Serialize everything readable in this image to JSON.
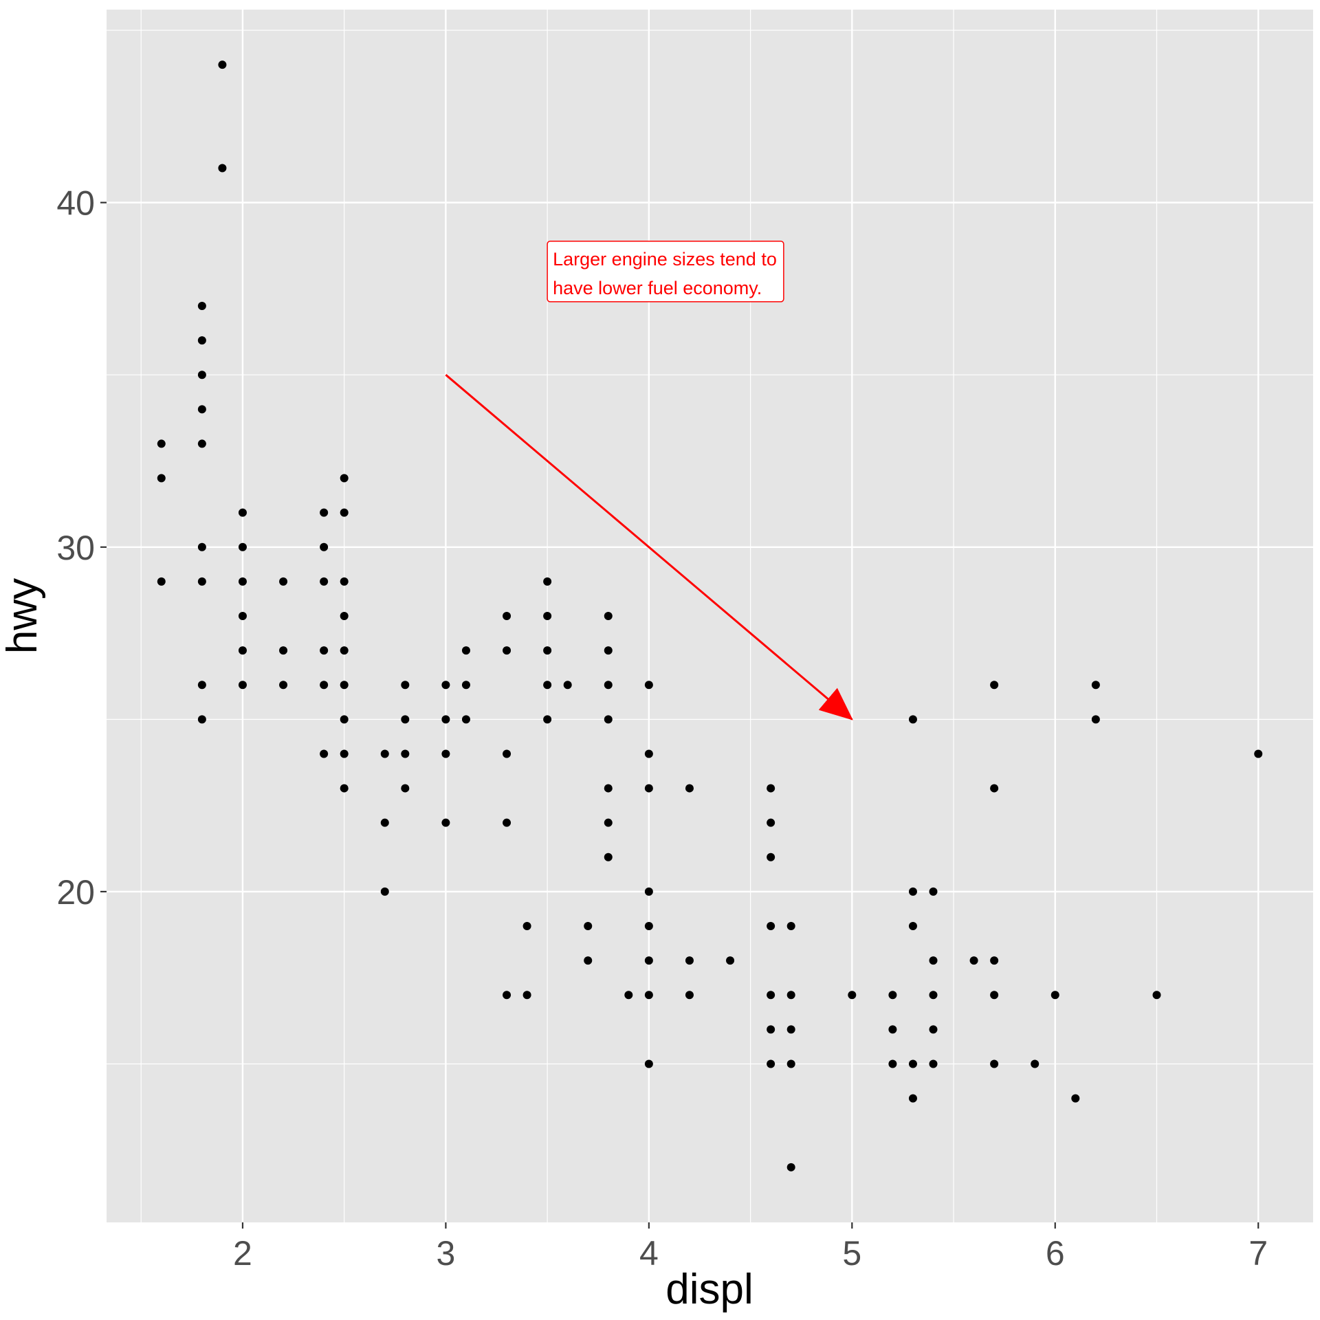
{
  "chart_data": {
    "type": "scatter",
    "xlabel": "displ",
    "ylabel": "hwy",
    "xlim": [
      1.33,
      7.27
    ],
    "ylim": [
      10.4,
      45.6
    ],
    "x_ticks": [
      2,
      3,
      4,
      5,
      6,
      7
    ],
    "y_ticks": [
      20,
      30,
      40
    ],
    "x_minor_ticks": [
      1.5,
      2.5,
      3.5,
      4.5,
      5.5,
      6.5
    ],
    "y_minor_ticks": [
      15,
      25,
      35,
      45
    ],
    "grid": true,
    "colors": {
      "panel": "#e5e5e5",
      "grid": "#ffffff",
      "point": "#000000",
      "annotation": "#ff0000",
      "tick_text": "#4d4d4d"
    },
    "annotation": {
      "lines": [
        "Larger engine sizes tend to",
        "have lower fuel economy."
      ],
      "x": 3.5,
      "y": 38,
      "color": "#ff0000"
    },
    "arrow": {
      "x_start": 3,
      "y_start": 35,
      "x_end": 5,
      "y_end": 25,
      "color": "#ff0000"
    },
    "points": [
      [
        1.6,
        33
      ],
      [
        1.6,
        32
      ],
      [
        1.6,
        29
      ],
      [
        1.8,
        37
      ],
      [
        1.8,
        36
      ],
      [
        1.8,
        35
      ],
      [
        1.8,
        34
      ],
      [
        1.8,
        33
      ],
      [
        1.8,
        30
      ],
      [
        1.8,
        29
      ],
      [
        1.8,
        26
      ],
      [
        1.8,
        25
      ],
      [
        1.9,
        44
      ],
      [
        1.9,
        41
      ],
      [
        2.0,
        31
      ],
      [
        2.0,
        30
      ],
      [
        2.0,
        29
      ],
      [
        2.0,
        28
      ],
      [
        2.0,
        27
      ],
      [
        2.0,
        26
      ],
      [
        2.2,
        29
      ],
      [
        2.2,
        27
      ],
      [
        2.2,
        26
      ],
      [
        2.4,
        31
      ],
      [
        2.4,
        30
      ],
      [
        2.4,
        29
      ],
      [
        2.4,
        27
      ],
      [
        2.4,
        26
      ],
      [
        2.4,
        24
      ],
      [
        2.5,
        32
      ],
      [
        2.5,
        31
      ],
      [
        2.5,
        29
      ],
      [
        2.5,
        28
      ],
      [
        2.5,
        27
      ],
      [
        2.5,
        26
      ],
      [
        2.5,
        25
      ],
      [
        2.5,
        24
      ],
      [
        2.5,
        23
      ],
      [
        2.7,
        24
      ],
      [
        2.7,
        22
      ],
      [
        2.7,
        20
      ],
      [
        2.8,
        26
      ],
      [
        2.8,
        25
      ],
      [
        2.8,
        24
      ],
      [
        2.8,
        23
      ],
      [
        3.0,
        26
      ],
      [
        3.0,
        25
      ],
      [
        3.0,
        24
      ],
      [
        3.0,
        22
      ],
      [
        3.1,
        27
      ],
      [
        3.1,
        26
      ],
      [
        3.1,
        25
      ],
      [
        3.3,
        28
      ],
      [
        3.3,
        27
      ],
      [
        3.3,
        24
      ],
      [
        3.3,
        22
      ],
      [
        3.3,
        17
      ],
      [
        3.4,
        19
      ],
      [
        3.4,
        17
      ],
      [
        3.5,
        29
      ],
      [
        3.5,
        28
      ],
      [
        3.5,
        27
      ],
      [
        3.5,
        26
      ],
      [
        3.5,
        25
      ],
      [
        3.6,
        26
      ],
      [
        3.7,
        19
      ],
      [
        3.7,
        18
      ],
      [
        3.8,
        28
      ],
      [
        3.8,
        27
      ],
      [
        3.8,
        26
      ],
      [
        3.8,
        25
      ],
      [
        3.8,
        23
      ],
      [
        3.8,
        22
      ],
      [
        3.8,
        21
      ],
      [
        3.9,
        17
      ],
      [
        4.0,
        26
      ],
      [
        4.0,
        24
      ],
      [
        4.0,
        23
      ],
      [
        4.0,
        20
      ],
      [
        4.0,
        19
      ],
      [
        4.0,
        18
      ],
      [
        4.0,
        17
      ],
      [
        4.0,
        15
      ],
      [
        4.2,
        23
      ],
      [
        4.2,
        18
      ],
      [
        4.2,
        17
      ],
      [
        4.4,
        18
      ],
      [
        4.6,
        23
      ],
      [
        4.6,
        22
      ],
      [
        4.6,
        21
      ],
      [
        4.6,
        19
      ],
      [
        4.6,
        17
      ],
      [
        4.6,
        16
      ],
      [
        4.6,
        15
      ],
      [
        4.7,
        19
      ],
      [
        4.7,
        17
      ],
      [
        4.7,
        16
      ],
      [
        4.7,
        15
      ],
      [
        4.7,
        12
      ],
      [
        5.0,
        17
      ],
      [
        5.2,
        17
      ],
      [
        5.2,
        16
      ],
      [
        5.2,
        15
      ],
      [
        5.3,
        25
      ],
      [
        5.3,
        20
      ],
      [
        5.3,
        19
      ],
      [
        5.3,
        15
      ],
      [
        5.3,
        14
      ],
      [
        5.4,
        20
      ],
      [
        5.4,
        18
      ],
      [
        5.4,
        17
      ],
      [
        5.4,
        16
      ],
      [
        5.4,
        15
      ],
      [
        5.6,
        18
      ],
      [
        5.7,
        26
      ],
      [
        5.7,
        23
      ],
      [
        5.7,
        18
      ],
      [
        5.7,
        17
      ],
      [
        5.7,
        15
      ],
      [
        5.9,
        15
      ],
      [
        6.0,
        17
      ],
      [
        6.1,
        14
      ],
      [
        6.2,
        26
      ],
      [
        6.2,
        25
      ],
      [
        6.5,
        17
      ],
      [
        7.0,
        24
      ]
    ]
  }
}
